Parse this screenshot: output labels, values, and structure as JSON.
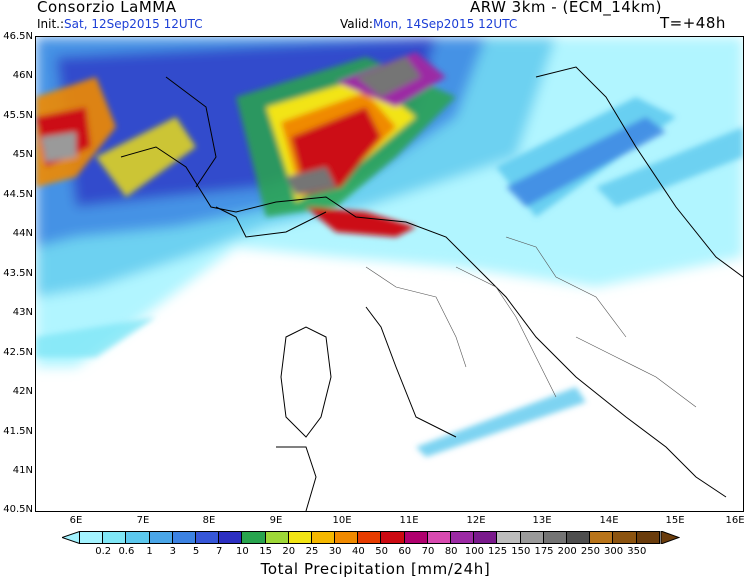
{
  "header": {
    "org": "Consorzio LaMMA",
    "model": "ARW 3km - (ECM_14km)",
    "init_label": "Init.:",
    "init_value": "Sat, 12Sep2015 12UTC",
    "valid_label": "Valid:",
    "valid_value": "Mon, 14Sep2015 12UTC",
    "lead": "T=+48h"
  },
  "map": {
    "lat_labels": [
      "46.5N",
      "46N",
      "45.5N",
      "45N",
      "44.5N",
      "44N",
      "43.5N",
      "43N",
      "42.5N",
      "42N",
      "41.5N",
      "41N",
      "40.5N"
    ],
    "lon_labels": [
      "6E",
      "7E",
      "8E",
      "9E",
      "10E",
      "11E",
      "12E",
      "13E",
      "14E",
      "15E",
      "16E"
    ]
  },
  "colorbar": {
    "title": "Total Precipitation [mm/24h]",
    "labels": [
      "0.2",
      "0.6",
      "1",
      "3",
      "5",
      "7",
      "10",
      "15",
      "20",
      "25",
      "30",
      "40",
      "50",
      "60",
      "70",
      "80",
      "100",
      "125",
      "150",
      "175",
      "200",
      "250",
      "300",
      "350"
    ],
    "colors": [
      "#a3f3ff",
      "#7fe6f6",
      "#5cc8ee",
      "#4aa6e8",
      "#3c82e2",
      "#3656d8",
      "#2c2fc2",
      "#28a44e",
      "#9ed838",
      "#f2e414",
      "#f5b800",
      "#f08a00",
      "#e63c00",
      "#cc0a12",
      "#b0006e",
      "#d84ab0",
      "#9c2aa4",
      "#7a1a8c",
      "#bdbdbd",
      "#9a9a9a",
      "#747474",
      "#4e4e4e",
      "#b8741a",
      "#8c5410",
      "#6a3c0c"
    ]
  }
}
